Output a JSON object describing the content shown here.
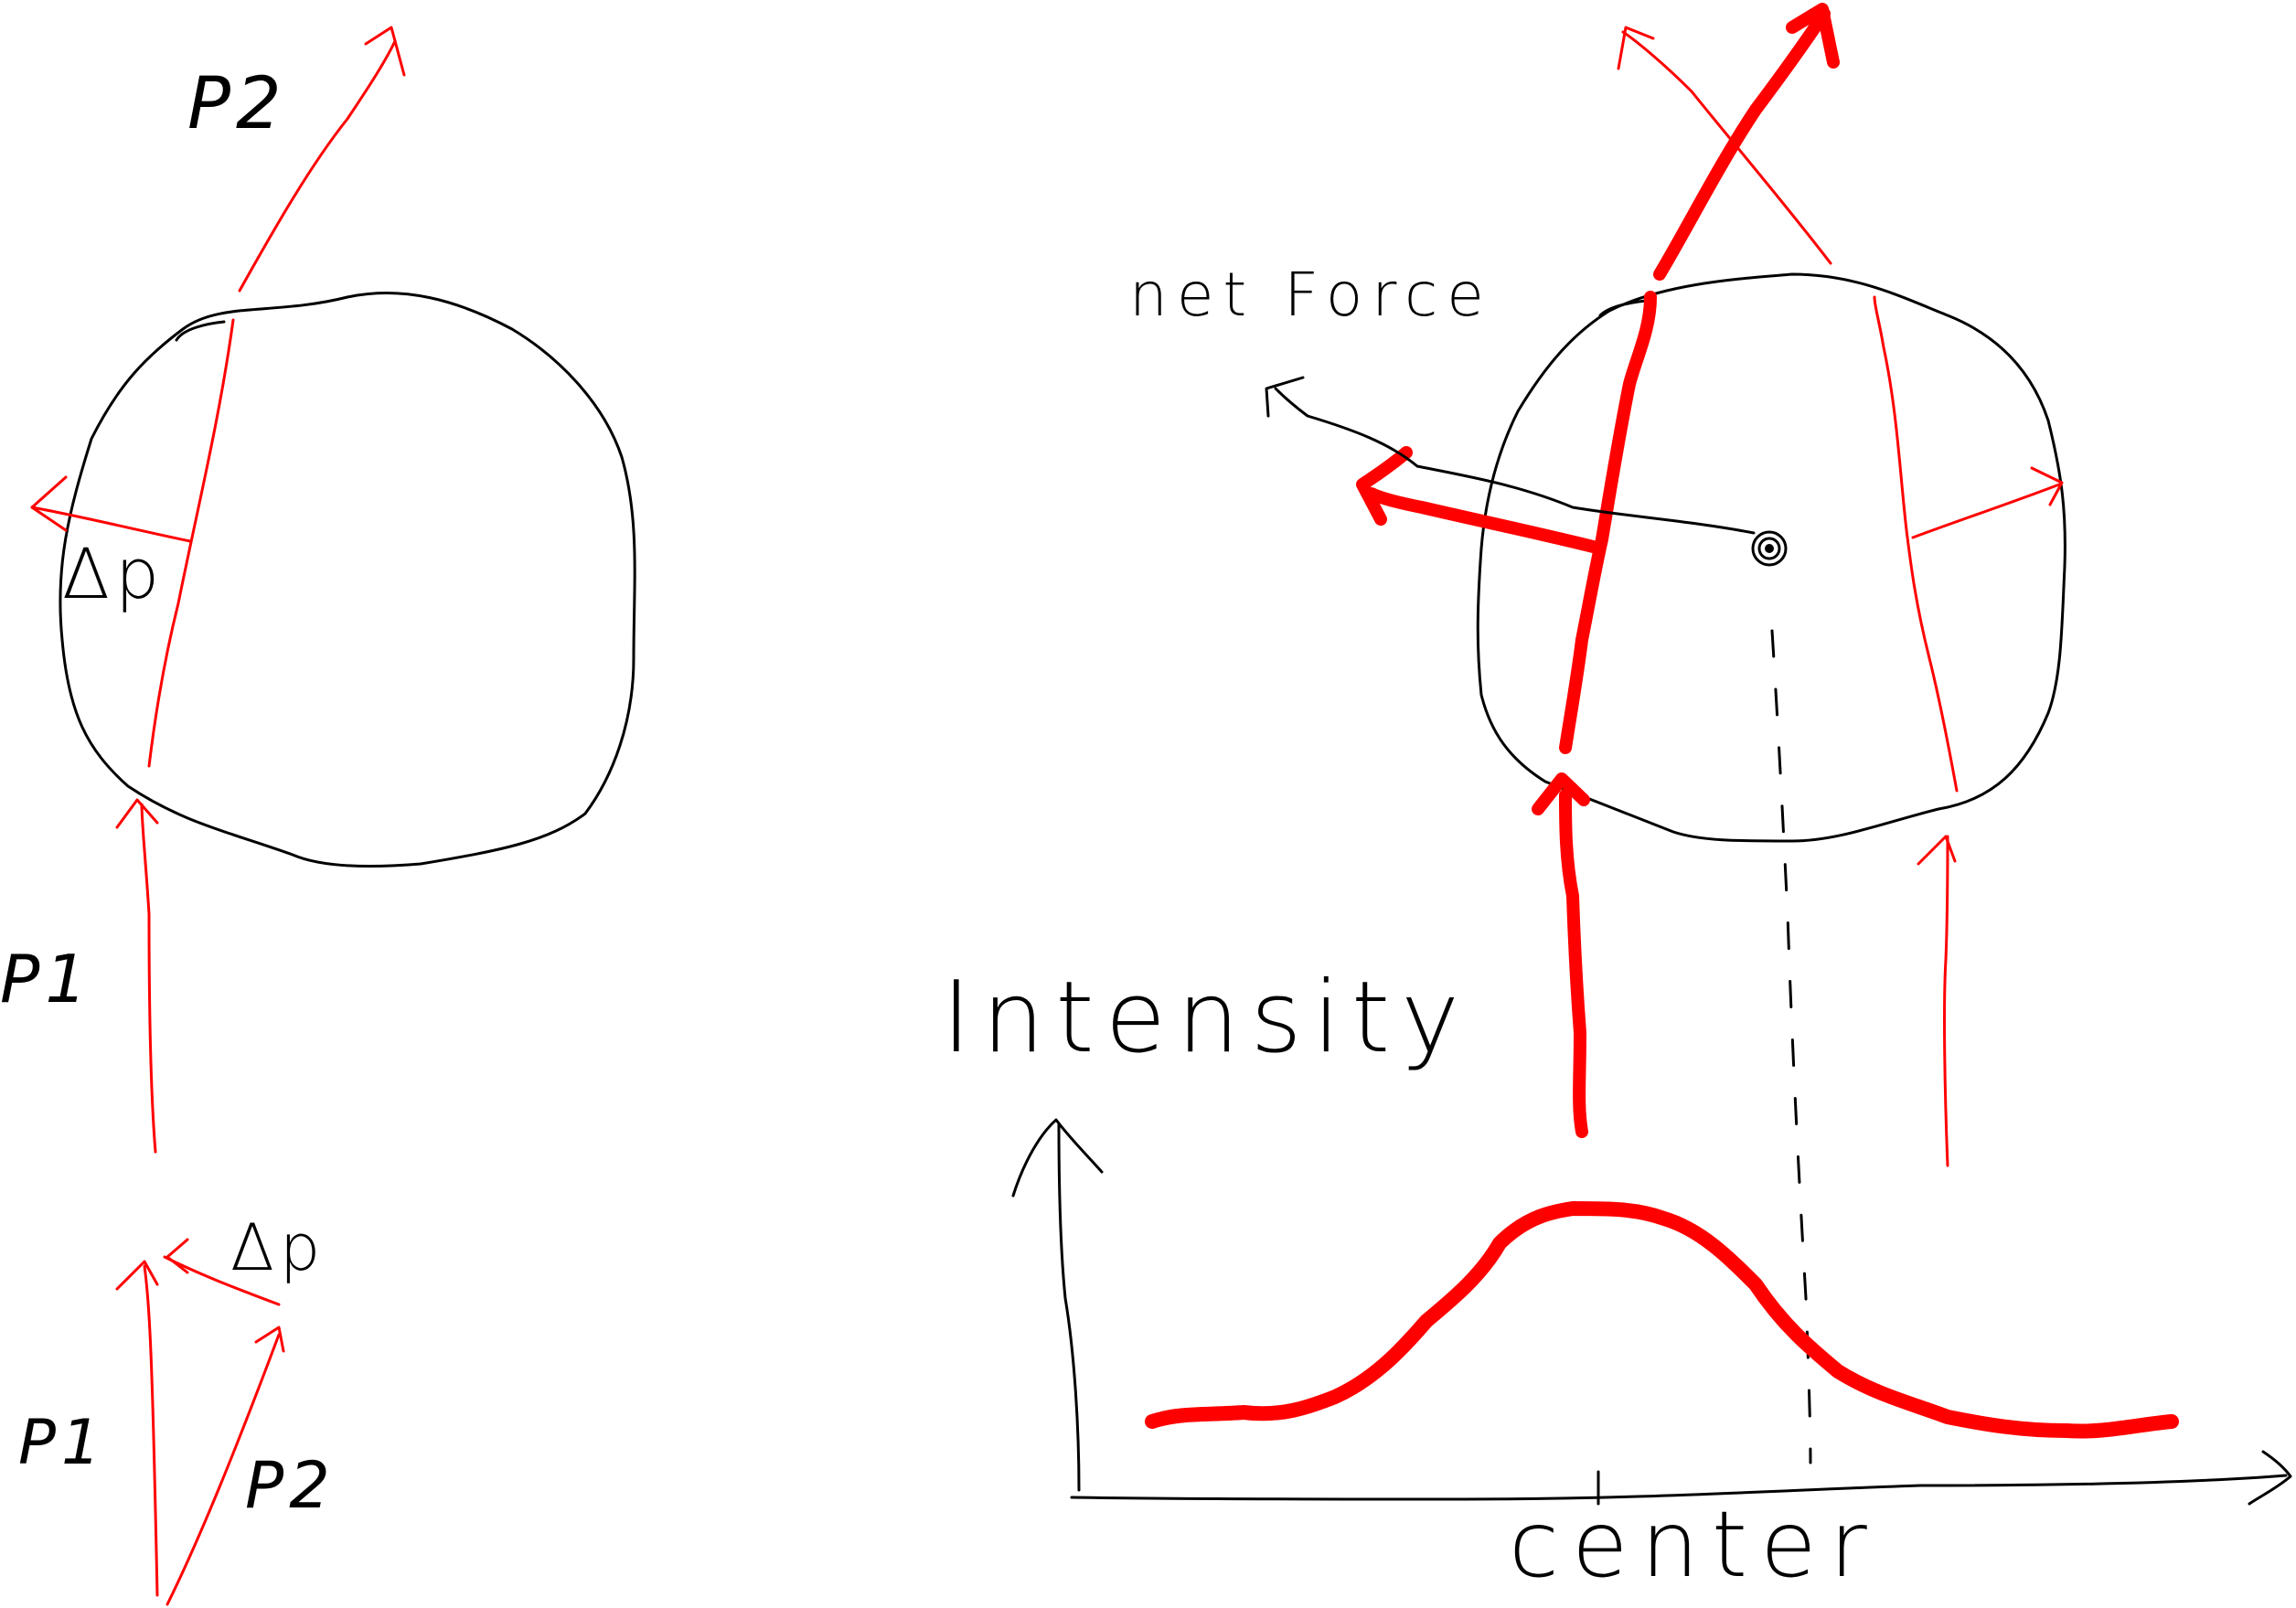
{
  "labels": {
    "p2_top": "P2",
    "delta_p_left": "Δp",
    "p1_left": "P1",
    "delta_p_bottom": "Δp",
    "p1_bottom": "P1",
    "p2_bottom": "P2",
    "net_force": "net Force",
    "intensity": "Intensity",
    "center": "center"
  },
  "colors": {
    "ink": "#000000",
    "red": "#ff0000"
  }
}
